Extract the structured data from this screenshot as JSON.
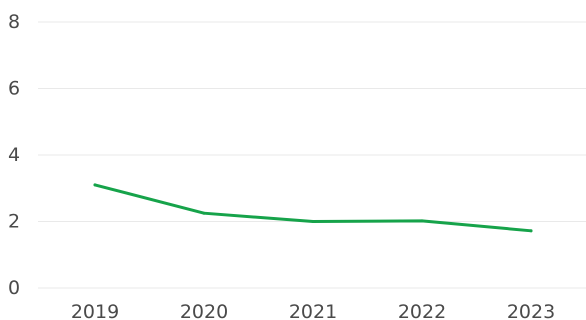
{
  "chart_data": {
    "type": "line",
    "title": "",
    "xlabel": "",
    "ylabel": "",
    "categories": [
      "2019",
      "2020",
      "2021",
      "2022",
      "2023"
    ],
    "series": [
      {
        "values": [
          3.1,
          2.25,
          2.0,
          2.02,
          1.72
        ],
        "color": "#16a34a"
      }
    ],
    "ylim": [
      0,
      8
    ],
    "y_ticks": [
      "0",
      "2",
      "4",
      "6",
      "8"
    ],
    "grid": true,
    "colors": {
      "grid": "#e9e9e9",
      "tick_text": "#4a4a4a",
      "line": "#16a34a"
    }
  }
}
